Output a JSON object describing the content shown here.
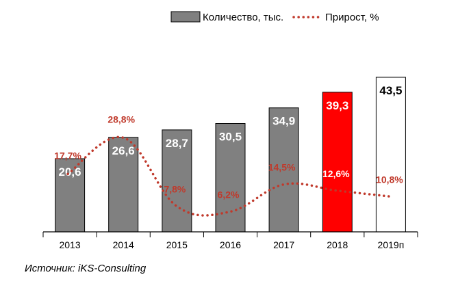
{
  "chart_data": {
    "type": "bar",
    "categories": [
      "2013",
      "2014",
      "2015",
      "2016",
      "2017",
      "2018",
      "2019п"
    ],
    "series": [
      {
        "name": "Количество, тыс.",
        "kind": "bar",
        "values": [
          20.6,
          26.6,
          28.7,
          30.5,
          34.9,
          39.3,
          43.5
        ],
        "labels": [
          "20,6",
          "26,6",
          "28,7",
          "30,5",
          "34,9",
          "39,3",
          "43,5"
        ],
        "colors": [
          "#808080",
          "#808080",
          "#808080",
          "#808080",
          "#808080",
          "#ff0000",
          "#ffffff"
        ],
        "label_colors": [
          "#ffffff",
          "#ffffff",
          "#ffffff",
          "#ffffff",
          "#ffffff",
          "#ffffff",
          "#000000"
        ]
      },
      {
        "name": "Прирост, %",
        "kind": "line",
        "style": "dotted",
        "color": "#c0392b",
        "values": [
          17.7,
          28.8,
          7.8,
          6.2,
          14.5,
          12.6,
          10.8
        ],
        "labels": [
          "17,7%",
          "28,8%",
          "7,8%",
          "6,2%",
          "14,5%",
          "12,6%",
          "10,8%"
        ],
        "label_colors": [
          "#c0392b",
          "#c0392b",
          "#c0392b",
          "#c0392b",
          "#c0392b",
          "#ffffff",
          "#c0392b"
        ]
      }
    ],
    "ylim_bars": [
      0,
      48
    ],
    "ylim_line": [
      0,
      36
    ],
    "legend_position": "top",
    "grid": false
  },
  "source": "Источник: iKS-Consulting"
}
